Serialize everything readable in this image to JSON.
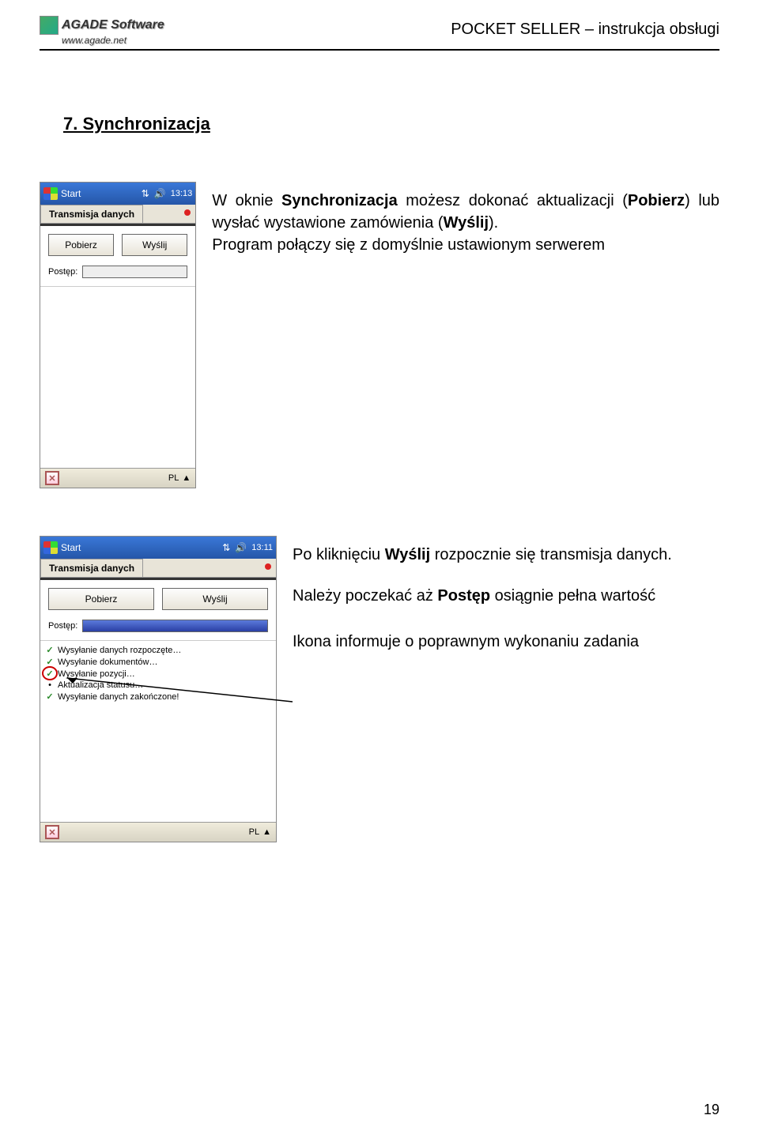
{
  "header": {
    "brand_name": "AGADE Software",
    "brand_url": "www.agade.net",
    "doc_title": "POCKET SELLER – instrukcja obsługi"
  },
  "section": {
    "heading": "7.  Synchronizacja"
  },
  "screenshot1": {
    "taskbar": {
      "start": "Start",
      "time": "13:13"
    },
    "tab_title": "Transmisja danych",
    "buttons": {
      "download": "Pobierz",
      "send": "Wyślij"
    },
    "progress_label": "Postęp:",
    "progress_pct": 0,
    "bottom_lang": "PL"
  },
  "screenshot2": {
    "taskbar": {
      "start": "Start",
      "time": "13:11"
    },
    "tab_title": "Transmisja danych",
    "buttons": {
      "download": "Pobierz",
      "send": "Wyślij"
    },
    "progress_label": "Postęp:",
    "progress_pct": 100,
    "bottom_lang": "PL",
    "status": [
      {
        "icon": "check",
        "text": "Wysyłanie danych rozpoczęte…"
      },
      {
        "icon": "check",
        "text": "Wysyłanie dokumentów…"
      },
      {
        "icon": "check",
        "text": "Wysyłanie pozycji…",
        "circled": true
      },
      {
        "icon": "bullet",
        "text": "Aktualizacja statusu…"
      },
      {
        "icon": "check",
        "text": "Wysyłanie danych zakończone!"
      }
    ]
  },
  "text1": {
    "parts": [
      {
        "t": "W oknie ",
        "b": false
      },
      {
        "t": "Synchronizacja",
        "b": true
      },
      {
        "t": " możesz dokonać aktualizacji (",
        "b": false
      },
      {
        "t": "Pobierz",
        "b": true
      },
      {
        "t": ") lub wysłać wystawione zamówienia (",
        "b": false
      },
      {
        "t": "Wyślij",
        "b": true
      },
      {
        "t": ").",
        "b": false
      }
    ],
    "line2": "Program połączy się z domyślnie ustawionym serwerem"
  },
  "text2": {
    "parts": [
      {
        "t": "Po kliknięciu ",
        "b": false
      },
      {
        "t": "Wyślij",
        "b": true
      },
      {
        "t": " rozpocznie się transmisja danych.",
        "b": false
      }
    ],
    "line2_parts": [
      {
        "t": "Należy poczekać aż ",
        "b": false
      },
      {
        "t": "Postęp",
        "b": true
      },
      {
        "t": " osiągnie pełna wartość",
        "b": false
      }
    ],
    "line3": "Ikona informuje o poprawnym wykonaniu zadania"
  },
  "page_number": "19"
}
